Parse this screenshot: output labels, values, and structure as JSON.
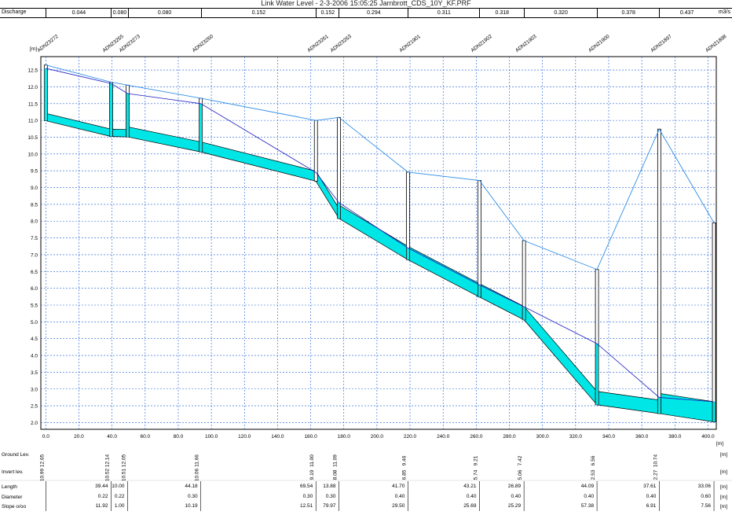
{
  "title": "Link Water Level - 2-3-2006 15:05:25 Jarnbrott_CDS_10Y_KF.PRF",
  "discharge": {
    "label": "Discharge",
    "unit": "m3/s",
    "values": [
      "0.044",
      "0.080",
      "0.080",
      "0.152",
      "0.152",
      "0.294",
      "0.311",
      "0.318",
      "0.320",
      "0.378",
      "0.437"
    ]
  },
  "y_axis_unit": "[m]",
  "x_axis_unit": "[m]",
  "colors": {
    "pipe": "#00e5e5",
    "ground": "#2e8ee6",
    "water": "#2020c0",
    "grid": "#1e5fd6",
    "manhole": "#000000"
  },
  "table": {
    "rows": [
      {
        "label": "Ground Lev.",
        "unit": "[m]"
      },
      {
        "label": "Invert lev.",
        "unit": "[m]"
      },
      {
        "label": "Length",
        "unit": "[m]",
        "values": [
          "39.44",
          "10.00",
          "44.18",
          "69.54",
          "13.88",
          "41.70",
          "43.21",
          "26.89",
          "44.09",
          "37.61",
          "33.06"
        ]
      },
      {
        "label": "Diameter",
        "unit": "[m]",
        "values": [
          "0.22",
          "0.22",
          "0.30",
          "0.30",
          "0.30",
          "0.40",
          "0.40",
          "0.40",
          "0.40",
          "0.40",
          "0.60"
        ]
      },
      {
        "label": "Slope o/oo",
        "unit": "[m]",
        "values": [
          "11.92",
          "1.00",
          "10.19",
          "12.51",
          "79.97",
          "29.50",
          "25.69",
          "25.29",
          "57.38",
          "6.91",
          "7.56"
        ]
      }
    ]
  },
  "chart_data": {
    "type": "line",
    "title": "Link Water Level - 2-3-2006 15:05:25 Jarnbrott_CDS_10Y_KF.PRF",
    "xlabel": "[m]",
    "ylabel": "[m]",
    "xlim": [
      -3,
      405
    ],
    "ylim": [
      1.8,
      12.9
    ],
    "x_ticks": [
      "0.0",
      "20.0",
      "40.0",
      "60.0",
      "80.0",
      "100.0",
      "120.0",
      "140.0",
      "160.0",
      "180.0",
      "200.0",
      "220.0",
      "240.0",
      "260.0",
      "280.0",
      "300.0",
      "320.0",
      "340.0",
      "360.0",
      "380.0",
      "400.0"
    ],
    "y_ticks": [
      "2.0",
      "2.5",
      "3.0",
      "3.5",
      "4.0",
      "4.5",
      "5.0",
      "5.5",
      "6.0",
      "6.5",
      "7.0",
      "7.5",
      "8.0",
      "8.5",
      "9.0",
      "9.5",
      "10.0",
      "10.5",
      "11.0",
      "11.5",
      "12.0",
      "12.5"
    ],
    "grid": true,
    "nodes": [
      {
        "name": "ADN23272",
        "x": 0.0,
        "ground": 12.65,
        "invert": 10.99,
        "ground_label": "12.65",
        "invert_label": "10.99"
      },
      {
        "name": "ADN23265",
        "x": 39.44,
        "ground": 12.14,
        "invert": 10.52,
        "ground_label": "12.14",
        "invert_label": "10.52"
      },
      {
        "name": "ADN23273",
        "x": 49.44,
        "ground": 12.05,
        "invert": 10.51,
        "ground_label": "12.05",
        "invert_label": "10.51"
      },
      {
        "name": "ADN23260",
        "x": 93.62,
        "ground": 11.66,
        "invert": 10.06,
        "ground_label": "11.66",
        "invert_label": "10.06"
      },
      {
        "name": "ADN23261",
        "x": 163.16,
        "ground": 11.0,
        "invert": 9.19,
        "ground_label": "11.00",
        "invert_label": "9.19"
      },
      {
        "name": "ADN23263",
        "x": 177.04,
        "ground": 11.09,
        "invert": 8.08,
        "ground_label": "11.09",
        "invert_label": "8.08"
      },
      {
        "name": "ADN21901",
        "x": 218.74,
        "ground": 9.46,
        "invert": 6.85,
        "ground_label": "9.46",
        "invert_label": "6.85"
      },
      {
        "name": "ADN21902",
        "x": 261.95,
        "ground": 9.21,
        "invert": 5.74,
        "ground_label": "9.21",
        "invert_label": "5.74"
      },
      {
        "name": "ADN21903",
        "x": 288.84,
        "ground": 7.42,
        "invert": 5.06,
        "ground_label": "7.42",
        "invert_label": "5.06"
      },
      {
        "name": "ADN21900",
        "x": 332.93,
        "ground": 6.56,
        "invert": 2.53,
        "ground_label": "6.56",
        "invert_label": "2.53"
      },
      {
        "name": "ADN21897",
        "x": 370.54,
        "ground": 10.74,
        "invert": 2.27,
        "ground_label": "10.74",
        "invert_label": "2.27"
      },
      {
        "name": "ADN21898",
        "x": 403.6,
        "ground": 7.95,
        "invert": 2.02,
        "ground_label": "",
        "invert_label": ""
      }
    ],
    "pipe_diameters": [
      0.22,
      0.22,
      0.3,
      0.3,
      0.3,
      0.4,
      0.4,
      0.4,
      0.4,
      0.4,
      0.6
    ],
    "water_level": {
      "x": [
        0.0,
        39.44,
        49.44,
        93.62,
        163.16,
        177.04,
        218.74,
        261.95,
        288.84,
        332.93,
        370.54,
        403.6
      ],
      "y": [
        12.55,
        12.1,
        11.8,
        11.5,
        9.45,
        8.55,
        7.2,
        6.1,
        5.45,
        4.35,
        2.75,
        2.62
      ]
    },
    "series": [
      {
        "name": "Ground Lev.",
        "values": [
          12.65,
          12.14,
          12.05,
          11.66,
          11.0,
          11.09,
          9.46,
          9.21,
          7.42,
          6.56,
          10.74,
          7.95
        ]
      },
      {
        "name": "Invert lev.",
        "values": [
          10.99,
          10.52,
          10.51,
          10.06,
          9.19,
          8.08,
          6.85,
          5.74,
          5.06,
          2.53,
          2.27,
          2.02
        ]
      }
    ]
  }
}
